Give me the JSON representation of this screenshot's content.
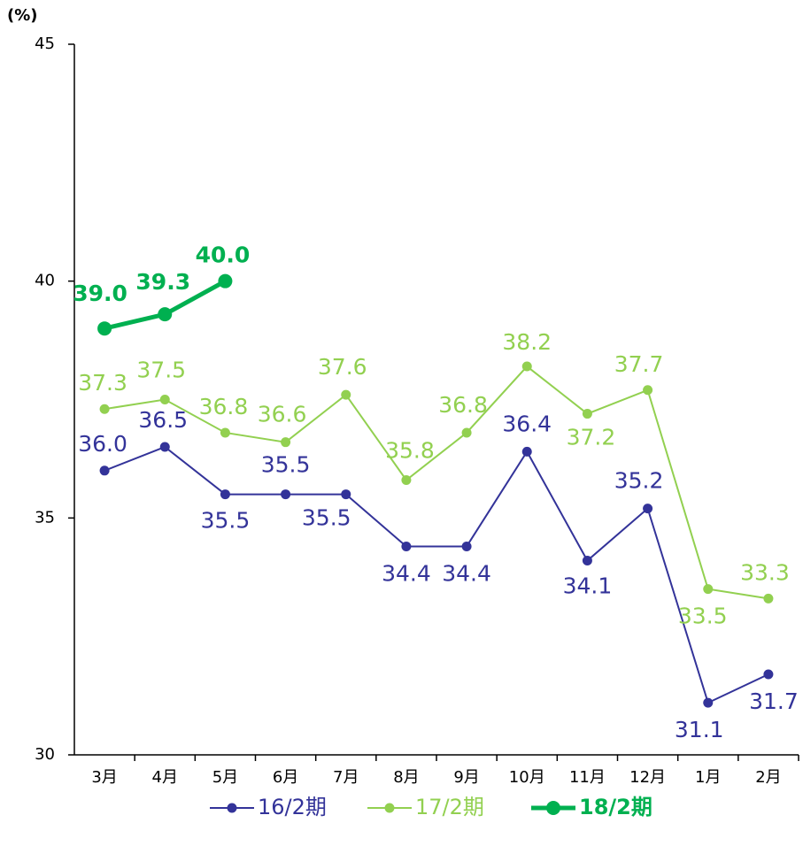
{
  "chart_data": {
    "type": "line",
    "y_axis_label": "(%)",
    "categories": [
      "3月",
      "4月",
      "5月",
      "6月",
      "7月",
      "8月",
      "9月",
      "10月",
      "11月",
      "12月",
      "1月",
      "2月"
    ],
    "ylim": [
      30,
      45
    ],
    "yticks": [
      30,
      35,
      40,
      45
    ],
    "series": [
      {
        "name": "16/2期",
        "color": "#333399",
        "values": [
          36.0,
          36.5,
          35.5,
          35.5,
          35.5,
          34.4,
          34.4,
          36.4,
          34.1,
          35.2,
          31.1,
          31.7
        ],
        "value_labels": [
          "36.0",
          "36.5",
          "35.5",
          "35.5",
          "35.5",
          "34.4",
          "34.4",
          "36.4",
          "34.1",
          "35.2",
          "31.1",
          "31.7"
        ]
      },
      {
        "name": "17/2期",
        "color": "#92d050",
        "values": [
          37.3,
          37.5,
          36.8,
          36.6,
          37.6,
          35.8,
          36.8,
          38.2,
          37.2,
          37.7,
          33.5,
          33.3
        ],
        "value_labels": [
          "37.3",
          "37.5",
          "36.8",
          "36.6",
          "37.6",
          "35.8",
          "36.8",
          "38.2",
          "37.2",
          "37.7",
          "33.5",
          "33.3"
        ]
      },
      {
        "name": "18/2期",
        "color": "#00b050",
        "values": [
          39.0,
          39.3,
          40.0,
          null,
          null,
          null,
          null,
          null,
          null,
          null,
          null,
          null
        ],
        "value_labels": [
          "39.0",
          "39.3",
          "40.0",
          null,
          null,
          null,
          null,
          null,
          null,
          null,
          null,
          null
        ]
      }
    ]
  }
}
